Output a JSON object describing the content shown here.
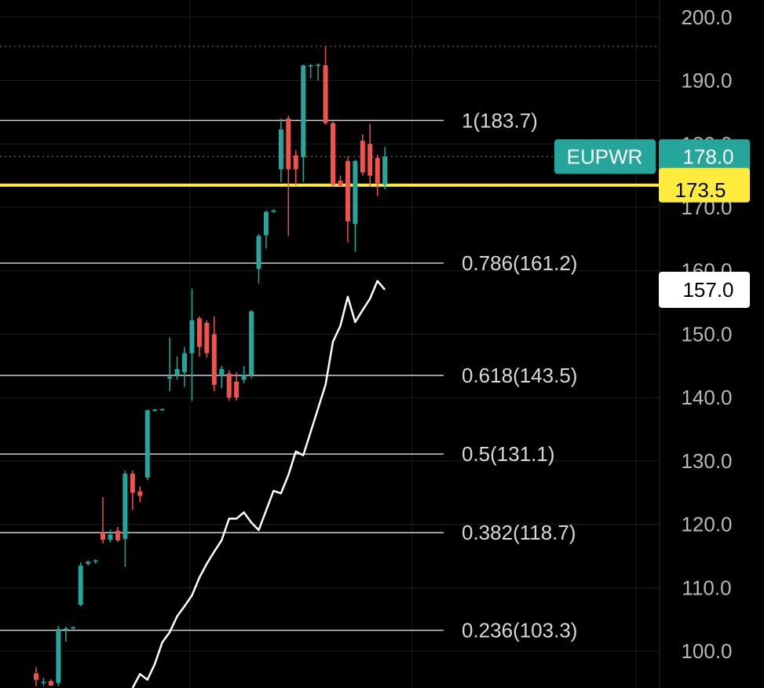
{
  "chart_data": {
    "type": "candlestick",
    "ylim": [
      94.2,
      202.7
    ],
    "yticks": [
      {
        "value": 200,
        "label": "200.0"
      },
      {
        "value": 190,
        "label": "190.0"
      },
      {
        "value": 180,
        "label": "180.0"
      },
      {
        "value": 170,
        "label": "170.0"
      },
      {
        "value": 160,
        "label": "160.0"
      },
      {
        "value": 150,
        "label": "150.0"
      },
      {
        "value": 140,
        "label": "140.0"
      },
      {
        "value": 130,
        "label": "130.0"
      },
      {
        "value": 120,
        "label": "120.0"
      },
      {
        "value": 110,
        "label": "110.0"
      },
      {
        "value": 100,
        "label": "100.0"
      }
    ],
    "grid": true,
    "up_color": "#26a69a",
    "down_color": "#ef5350",
    "series": [
      {
        "name": "EUPWR",
        "type": "candlestick",
        "color": "#26a69a",
        "value_label": "178.0",
        "open": [
          96.5,
          95,
          95.3,
          95,
          103.5,
          103.7,
          107.3,
          113.8,
          114.2,
          118.7,
          117.6,
          119,
          117.7,
          128,
          125.2,
          127.4,
          138,
          138.1,
          143,
          143.5,
          144,
          147,
          152.5,
          151.8,
          150,
          143.5,
          143.8,
          142.5,
          142.8,
          143.5,
          160.3,
          165.6,
          169.4,
          176,
          184,
          178.2,
          177.9,
          192.3,
          192.4,
          192.4,
          183.3,
          174.2,
          177.3,
          167.4,
          180.5,
          180,
          177.8,
          173.6
        ],
        "high": [
          97.5,
          95.8,
          95.6,
          104,
          103.9,
          103.9,
          114,
          114.3,
          114.5,
          124.3,
          119.2,
          119.6,
          128.5,
          128.5,
          126,
          138.1,
          138.2,
          138.3,
          149.5,
          146.5,
          148,
          157.2,
          152.8,
          152.2,
          152.8,
          145,
          144.3,
          144,
          145,
          153.8,
          165.8,
          169.5,
          169.7,
          184,
          184.5,
          179,
          192.5,
          192.6,
          192.7,
          195.4,
          183.5,
          175,
          178,
          177.5,
          181.5,
          183.2,
          178.3,
          179.5
        ],
        "low": [
          94.5,
          94.5,
          94.5,
          94.5,
          101.5,
          103.5,
          107.1,
          113.5,
          113.8,
          117,
          117.2,
          117.2,
          113.3,
          122.3,
          123.5,
          127,
          137.8,
          137.9,
          141,
          142.8,
          141.7,
          139.5,
          146.5,
          146.3,
          141,
          141.5,
          139.5,
          139.5,
          142.2,
          143,
          158,
          163.5,
          169.1,
          174,
          165.5,
          173.5,
          174,
          190.3,
          190,
          183,
          173.3,
          173.3,
          164.5,
          163,
          175,
          173.3,
          171.8,
          172.8
        ],
        "close": [
          95.5,
          95.2,
          94.6,
          103.5,
          103.6,
          103.8,
          113.5,
          114.1,
          114.3,
          117.6,
          118.4,
          117.5,
          128,
          125,
          124.5,
          138,
          138.1,
          138.2,
          143.3,
          144.5,
          147,
          152.2,
          148,
          147,
          142,
          144.5,
          140,
          140,
          143.5,
          153.6,
          165.5,
          169.3,
          169.5,
          182.3,
          176,
          176,
          192.4,
          192.4,
          192.5,
          183.3,
          173.6,
          173.4,
          167.8,
          177.3,
          175.5,
          175,
          173.8,
          178.0
        ]
      },
      {
        "type": "line",
        "color": "#ffffff",
        "value_label": "157.0",
        "values": [
          null,
          null,
          null,
          null,
          null,
          null,
          null,
          null,
          null,
          null,
          null,
          null,
          null,
          94.2,
          96.4,
          95.5,
          98.0,
          101.4,
          103.0,
          105.5,
          107.1,
          108.8,
          111.6,
          113.8,
          115.7,
          117.5,
          120.9,
          120.9,
          121.9,
          120.3,
          119.1,
          122.2,
          125.3,
          124.9,
          127.8,
          131.5,
          130.9,
          134.6,
          138.3,
          142.0,
          148.8,
          151.3,
          155.9,
          151.9,
          153.8,
          155.6,
          158.4,
          157.0
        ]
      }
    ],
    "fib_levels": [
      {
        "value": 183.7,
        "label": "1(183.7)"
      },
      {
        "value": 161.2,
        "label": "0.786(161.2)"
      },
      {
        "value": 143.5,
        "label": "0.618(143.5)"
      },
      {
        "value": 131.1,
        "label": "0.5(131.1)"
      },
      {
        "value": 118.7,
        "label": "0.382(118.7)"
      },
      {
        "value": 103.3,
        "label": "0.236(103.3)"
      }
    ],
    "price_line": {
      "value": 173.5,
      "color": "#ffeb3b"
    },
    "high_line": {
      "value": 195.4,
      "color": "#777777"
    }
  }
}
